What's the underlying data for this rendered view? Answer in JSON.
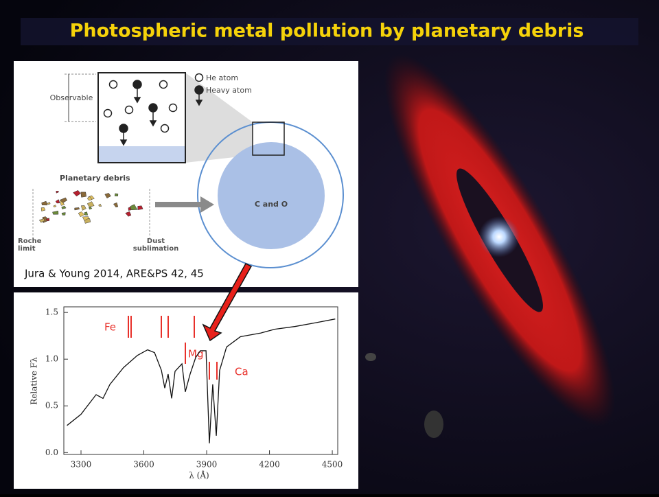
{
  "title": "Photospheric metal pollution by planetary debris",
  "diagram": {
    "observable": "Observable",
    "legend_he": "He atom",
    "legend_heavy": "Heavy atom",
    "debris": "Planetary debris",
    "core": "C and O",
    "roche": "Roche limit",
    "dust": "Dust sublimation",
    "citation": "Jura & Young 2014, ARE&PS 42, 45"
  },
  "chart_data": {
    "type": "line",
    "x_label": "λ (Å)",
    "y_label": "Relative Fλ",
    "annotations": [
      "Fe",
      "Mg",
      "Ca"
    ],
    "xlim": [
      3218,
      4526
    ],
    "xticks": [
      3300,
      3600,
      3900,
      4200,
      4500
    ],
    "ylim": [
      -0.02,
      1.56
    ],
    "yticks": [
      {
        "value": 0,
        "label": "0.0"
      },
      0.5,
      {
        "value": 1,
        "label": "1.0"
      },
      1.5
    ],
    "x": [
      3233,
      3300,
      3372,
      3405,
      3438,
      3503,
      3569,
      3618,
      3651,
      3684,
      3700,
      3716,
      3733,
      3749,
      3782,
      3798,
      3821,
      3848,
      3870,
      3897,
      3913,
      3929,
      3946,
      3962,
      3995,
      4061,
      4159,
      4225,
      4323,
      4421,
      4514
    ],
    "series": [
      {
        "color": "#111111",
        "values": [
          0.29,
          0.41,
          0.62,
          0.58,
          0.73,
          0.91,
          1.04,
          1.1,
          1.07,
          0.88,
          0.69,
          0.84,
          0.58,
          0.87,
          0.95,
          0.65,
          0.84,
          1.02,
          1.09,
          1.09,
          0.1,
          0.73,
          0.18,
          0.88,
          1.13,
          1.24,
          1.28,
          1.32,
          1.35,
          1.39,
          1.43
        ]
      }
    ]
  }
}
